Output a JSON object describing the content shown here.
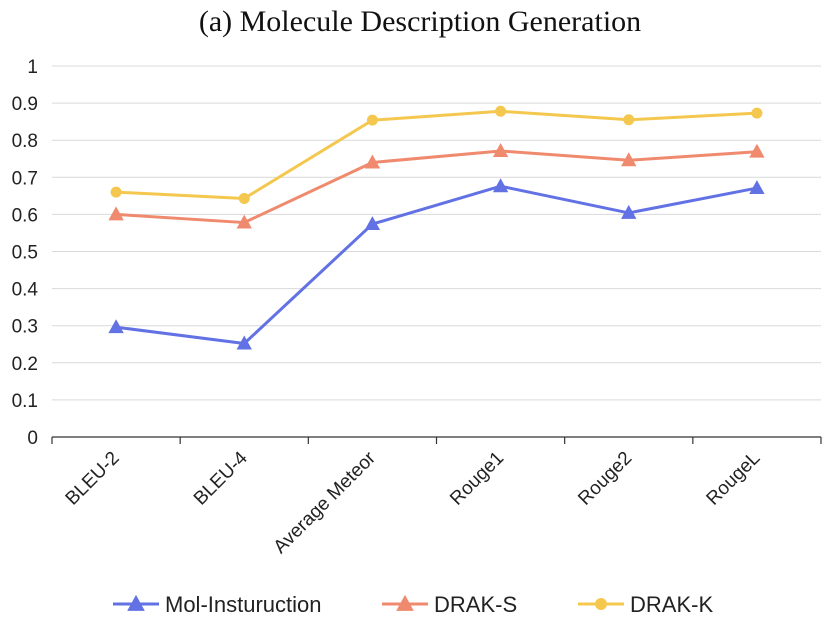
{
  "chart_data": {
    "type": "line",
    "title": "(a) Molecule Description Generation",
    "xlabel": "",
    "ylabel": "",
    "ylim": [
      0,
      1
    ],
    "yticks": [
      "0",
      "0.1",
      "0.2",
      "0.3",
      "0.4",
      "0.5",
      "0.6",
      "0.7",
      "0.8",
      "0.9",
      "1"
    ],
    "grid": true,
    "legend_position": "bottom",
    "categories": [
      "BLEU-2",
      "BLEU-4",
      "Average Meteor",
      "Rouge1",
      "Rouge2",
      "RougeL"
    ],
    "series": [
      {
        "name": "Mol-Insturuction",
        "color": "#6272e5",
        "marker": "triangle",
        "values": [
          0.296,
          0.252,
          0.574,
          0.676,
          0.604,
          0.671
        ]
      },
      {
        "name": "DRAK-S",
        "color": "#f08a6e",
        "marker": "triangle",
        "values": [
          0.6,
          0.578,
          0.74,
          0.771,
          0.746,
          0.769
        ]
      },
      {
        "name": "DRAK-K",
        "color": "#f4c84e",
        "marker": "circle",
        "values": [
          0.66,
          0.643,
          0.854,
          0.878,
          0.855,
          0.873
        ]
      }
    ]
  }
}
